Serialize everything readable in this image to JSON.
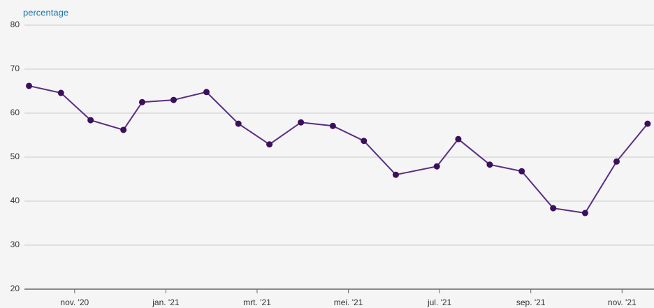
{
  "chart_data": {
    "type": "line",
    "y_label": "percentage",
    "x": [
      10.0,
      10.7,
      11.35,
      12.07,
      12.48,
      13.17,
      13.89,
      14.59,
      15.27,
      15.96,
      16.66,
      17.34,
      18.04,
      18.94,
      19.41,
      20.1,
      20.8,
      21.49,
      22.19,
      22.88,
      23.56
    ],
    "series": [
      {
        "name": "percentage",
        "color": "#5b2d82",
        "marker_color": "#3b0f5c",
        "values": [
          66.2,
          64.6,
          58.4,
          56.2,
          62.5,
          63.0,
          64.8,
          57.6,
          52.9,
          57.9,
          57.1,
          53.7,
          46.0,
          47.9,
          54.1,
          48.3,
          46.8,
          38.4,
          37.3,
          49.0,
          57.6
        ]
      }
    ],
    "xlim": [
      9.9,
      23.7
    ],
    "xticks": [
      {
        "value": 11,
        "label": "nov. '20"
      },
      {
        "value": 13,
        "label": "jan. '21"
      },
      {
        "value": 15,
        "label": "mrt. '21"
      },
      {
        "value": 17,
        "label": "mei. '21"
      },
      {
        "value": 19,
        "label": "jul. '21"
      },
      {
        "value": 21,
        "label": "sep. '21"
      },
      {
        "value": 23,
        "label": "nov. '21"
      }
    ],
    "ylim": [
      20,
      80
    ],
    "yticks": [
      20,
      30,
      40,
      50,
      60,
      70,
      80
    ],
    "grid": true
  }
}
